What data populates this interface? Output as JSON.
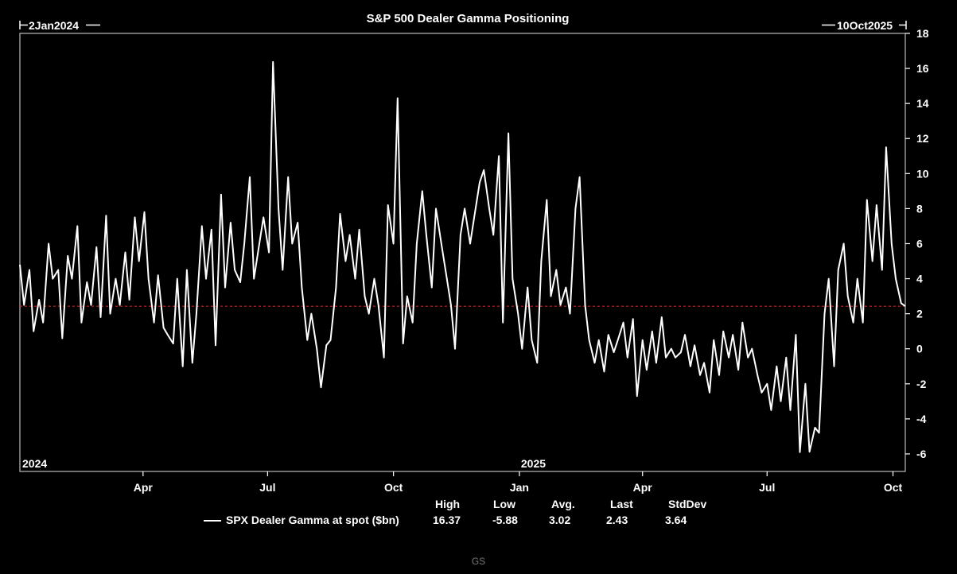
{
  "chart_data": {
    "type": "line",
    "title": "S&P 500 Dealer Gamma Positioning",
    "range_start_label": "2Jan2024",
    "range_end_label": "10Oct2025",
    "x_range": [
      "2024-01-02",
      "2025-10-10"
    ],
    "ylim": [
      -7,
      18
    ],
    "y_ticks": [
      -6,
      -4,
      -2,
      0,
      2,
      4,
      6,
      8,
      10,
      12,
      14,
      16,
      18
    ],
    "y_axis_side": "right",
    "x_ticks": [
      {
        "date": "2024-04-01",
        "label": "Apr"
      },
      {
        "date": "2024-07-01",
        "label": "Jul"
      },
      {
        "date": "2024-10-01",
        "label": "Oct"
      },
      {
        "date": "2025-01-01",
        "label": "Jan"
      },
      {
        "date": "2025-04-01",
        "label": "Apr"
      },
      {
        "date": "2025-07-01",
        "label": "Jul"
      },
      {
        "date": "2025-10-01",
        "label": "Oct"
      }
    ],
    "year_labels": [
      {
        "date": "2024-01-02",
        "label": "2024"
      },
      {
        "date": "2025-01-01",
        "label": "2025"
      }
    ],
    "reference_line": {
      "value": 2.43,
      "color": "#cc2222",
      "style": "dashed"
    },
    "series": [
      {
        "name": "SPX Dealer Gamma at spot ($bn)",
        "color": "#ffffff",
        "points": [
          [
            "2024-01-02",
            4.8
          ],
          [
            "2024-01-05",
            2.5
          ],
          [
            "2024-01-09",
            4.5
          ],
          [
            "2024-01-12",
            1.0
          ],
          [
            "2024-01-16",
            2.8
          ],
          [
            "2024-01-19",
            1.5
          ],
          [
            "2024-01-23",
            6.0
          ],
          [
            "2024-01-26",
            4.0
          ],
          [
            "2024-01-30",
            4.5
          ],
          [
            "2024-02-02",
            0.6
          ],
          [
            "2024-02-06",
            5.3
          ],
          [
            "2024-02-09",
            4.0
          ],
          [
            "2024-02-13",
            7.0
          ],
          [
            "2024-02-16",
            1.5
          ],
          [
            "2024-02-20",
            3.8
          ],
          [
            "2024-02-23",
            2.5
          ],
          [
            "2024-02-27",
            5.8
          ],
          [
            "2024-03-01",
            1.8
          ],
          [
            "2024-03-05",
            7.6
          ],
          [
            "2024-03-08",
            2.0
          ],
          [
            "2024-03-12",
            4.0
          ],
          [
            "2024-03-15",
            2.5
          ],
          [
            "2024-03-19",
            5.5
          ],
          [
            "2024-03-22",
            2.8
          ],
          [
            "2024-03-26",
            7.5
          ],
          [
            "2024-03-29",
            5.0
          ],
          [
            "2024-04-02",
            7.8
          ],
          [
            "2024-04-05",
            4.0
          ],
          [
            "2024-04-09",
            1.5
          ],
          [
            "2024-04-12",
            4.2
          ],
          [
            "2024-04-16",
            1.2
          ],
          [
            "2024-04-19",
            0.8
          ],
          [
            "2024-04-23",
            0.3
          ],
          [
            "2024-04-26",
            4.0
          ],
          [
            "2024-04-30",
            -1.0
          ],
          [
            "2024-05-03",
            4.5
          ],
          [
            "2024-05-07",
            -0.8
          ],
          [
            "2024-05-10",
            2.0
          ],
          [
            "2024-05-14",
            7.0
          ],
          [
            "2024-05-17",
            4.0
          ],
          [
            "2024-05-21",
            6.8
          ],
          [
            "2024-05-24",
            0.2
          ],
          [
            "2024-05-28",
            8.8
          ],
          [
            "2024-05-31",
            3.5
          ],
          [
            "2024-06-04",
            7.2
          ],
          [
            "2024-06-07",
            4.5
          ],
          [
            "2024-06-11",
            3.8
          ],
          [
            "2024-06-14",
            6.0
          ],
          [
            "2024-06-18",
            9.8
          ],
          [
            "2024-06-21",
            4.0
          ],
          [
            "2024-06-25",
            6.0
          ],
          [
            "2024-06-28",
            7.5
          ],
          [
            "2024-07-02",
            5.5
          ],
          [
            "2024-07-05",
            16.37
          ],
          [
            "2024-07-09",
            8.0
          ],
          [
            "2024-07-12",
            4.5
          ],
          [
            "2024-07-16",
            9.8
          ],
          [
            "2024-07-19",
            6.0
          ],
          [
            "2024-07-23",
            7.2
          ],
          [
            "2024-07-26",
            3.5
          ],
          [
            "2024-07-30",
            0.5
          ],
          [
            "2024-08-02",
            2.0
          ],
          [
            "2024-08-06",
            0.0
          ],
          [
            "2024-08-09",
            -2.2
          ],
          [
            "2024-08-13",
            0.2
          ],
          [
            "2024-08-16",
            0.5
          ],
          [
            "2024-08-20",
            3.5
          ],
          [
            "2024-08-23",
            7.7
          ],
          [
            "2024-08-27",
            5.0
          ],
          [
            "2024-08-30",
            6.5
          ],
          [
            "2024-09-03",
            4.0
          ],
          [
            "2024-09-06",
            6.8
          ],
          [
            "2024-09-10",
            3.0
          ],
          [
            "2024-09-13",
            2.0
          ],
          [
            "2024-09-17",
            4.0
          ],
          [
            "2024-09-20",
            2.5
          ],
          [
            "2024-09-24",
            -0.5
          ],
          [
            "2024-09-27",
            8.2
          ],
          [
            "2024-10-01",
            6.0
          ],
          [
            "2024-10-04",
            14.3
          ],
          [
            "2024-10-08",
            0.3
          ],
          [
            "2024-10-11",
            3.0
          ],
          [
            "2024-10-15",
            1.5
          ],
          [
            "2024-10-18",
            6.0
          ],
          [
            "2024-10-22",
            9.0
          ],
          [
            "2024-10-25",
            6.5
          ],
          [
            "2024-10-29",
            3.5
          ],
          [
            "2024-11-01",
            8.0
          ],
          [
            "2024-11-05",
            6.0
          ],
          [
            "2024-11-08",
            4.5
          ],
          [
            "2024-11-12",
            2.5
          ],
          [
            "2024-11-15",
            0.0
          ],
          [
            "2024-11-19",
            6.5
          ],
          [
            "2024-11-22",
            8.0
          ],
          [
            "2024-11-26",
            6.0
          ],
          [
            "2024-11-29",
            7.5
          ],
          [
            "2024-12-03",
            9.5
          ],
          [
            "2024-12-06",
            10.2
          ],
          [
            "2024-12-10",
            8.0
          ],
          [
            "2024-12-13",
            6.5
          ],
          [
            "2024-12-17",
            11.0
          ],
          [
            "2024-12-20",
            1.5
          ],
          [
            "2024-12-24",
            12.3
          ],
          [
            "2024-12-27",
            4.0
          ],
          [
            "2024-12-31",
            2.0
          ],
          [
            "2025-01-03",
            0.0
          ],
          [
            "2025-01-07",
            3.5
          ],
          [
            "2025-01-10",
            0.5
          ],
          [
            "2025-01-14",
            -0.8
          ],
          [
            "2025-01-17",
            5.0
          ],
          [
            "2025-01-21",
            8.5
          ],
          [
            "2025-01-24",
            3.0
          ],
          [
            "2025-01-28",
            4.5
          ],
          [
            "2025-01-31",
            2.5
          ],
          [
            "2025-02-04",
            3.5
          ],
          [
            "2025-02-07",
            2.0
          ],
          [
            "2025-02-11",
            8.0
          ],
          [
            "2025-02-14",
            9.8
          ],
          [
            "2025-02-18",
            2.5
          ],
          [
            "2025-02-21",
            0.5
          ],
          [
            "2025-02-25",
            -0.8
          ],
          [
            "2025-02-28",
            0.5
          ],
          [
            "2025-03-04",
            -1.3
          ],
          [
            "2025-03-07",
            0.8
          ],
          [
            "2025-03-11",
            -0.2
          ],
          [
            "2025-03-14",
            0.5
          ],
          [
            "2025-03-18",
            1.5
          ],
          [
            "2025-03-21",
            -0.5
          ],
          [
            "2025-03-25",
            1.7
          ],
          [
            "2025-03-28",
            -2.7
          ],
          [
            "2025-04-01",
            0.5
          ],
          [
            "2025-04-04",
            -1.2
          ],
          [
            "2025-04-08",
            1.0
          ],
          [
            "2025-04-11",
            -0.8
          ],
          [
            "2025-04-15",
            1.8
          ],
          [
            "2025-04-18",
            -0.5
          ],
          [
            "2025-04-22",
            0.0
          ],
          [
            "2025-04-25",
            -0.5
          ],
          [
            "2025-04-29",
            -0.2
          ],
          [
            "2025-05-02",
            0.8
          ],
          [
            "2025-05-06",
            -1.0
          ],
          [
            "2025-05-09",
            0.2
          ],
          [
            "2025-05-13",
            -1.5
          ],
          [
            "2025-05-16",
            -0.8
          ],
          [
            "2025-05-20",
            -2.5
          ],
          [
            "2025-05-23",
            0.5
          ],
          [
            "2025-05-27",
            -1.5
          ],
          [
            "2025-05-30",
            1.0
          ],
          [
            "2025-06-03",
            -0.5
          ],
          [
            "2025-06-06",
            0.8
          ],
          [
            "2025-06-10",
            -1.2
          ],
          [
            "2025-06-13",
            1.5
          ],
          [
            "2025-06-17",
            -0.5
          ],
          [
            "2025-06-20",
            0.0
          ],
          [
            "2025-06-24",
            -1.5
          ],
          [
            "2025-06-27",
            -2.5
          ],
          [
            "2025-07-01",
            -2.0
          ],
          [
            "2025-07-04",
            -3.5
          ],
          [
            "2025-07-08",
            -1.0
          ],
          [
            "2025-07-11",
            -3.0
          ],
          [
            "2025-07-15",
            -0.5
          ],
          [
            "2025-07-18",
            -3.5
          ],
          [
            "2025-07-22",
            0.8
          ],
          [
            "2025-07-25",
            -5.9
          ],
          [
            "2025-07-29",
            -2.0
          ],
          [
            "2025-08-01",
            -5.88
          ],
          [
            "2025-08-05",
            -4.5
          ],
          [
            "2025-08-08",
            -4.8
          ],
          [
            "2025-08-12",
            2.0
          ],
          [
            "2025-08-15",
            4.0
          ],
          [
            "2025-08-19",
            -1.0
          ],
          [
            "2025-08-22",
            4.5
          ],
          [
            "2025-08-26",
            6.0
          ],
          [
            "2025-08-29",
            3.0
          ],
          [
            "2025-09-02",
            1.5
          ],
          [
            "2025-09-05",
            4.0
          ],
          [
            "2025-09-09",
            1.5
          ],
          [
            "2025-09-12",
            8.5
          ],
          [
            "2025-09-16",
            5.0
          ],
          [
            "2025-09-19",
            8.2
          ],
          [
            "2025-09-23",
            4.5
          ],
          [
            "2025-09-26",
            11.5
          ],
          [
            "2025-09-30",
            6.0
          ],
          [
            "2025-10-03",
            4.0
          ],
          [
            "2025-10-07",
            2.6
          ],
          [
            "2025-10-10",
            2.43
          ]
        ]
      }
    ],
    "stats": {
      "headers": [
        "High",
        "Low",
        "Avg.",
        "Last",
        "StdDev"
      ],
      "values": [
        "16.37",
        "-5.88",
        "3.02",
        "2.43",
        "3.64"
      ]
    }
  },
  "watermark": "GS"
}
